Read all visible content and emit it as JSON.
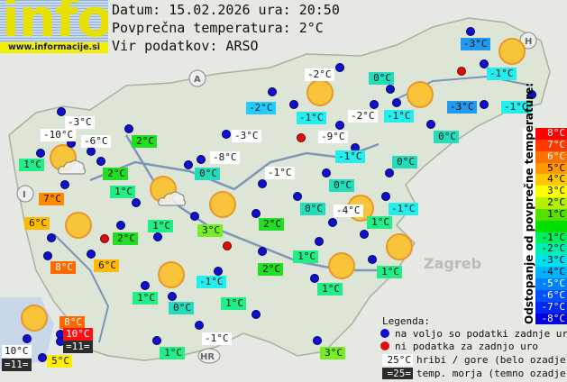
{
  "logo": {
    "text": "info",
    "url": "www.informacije.si"
  },
  "header": {
    "date_line": "Datum: 15.02.2026 ura: 20:50",
    "avg_line": "Povprečna temperatura: 2°C",
    "source_line": "Vir podatkov: ARSO"
  },
  "map_markers": {
    "country_codes": [
      "A",
      "H",
      "I",
      "HR"
    ],
    "city": "Zagreb"
  },
  "labels": [
    {
      "text": "-3°C",
      "type": "mountain"
    },
    {
      "text": "-10°C",
      "type": "mountain"
    },
    {
      "text": "-6°C",
      "type": "mountain"
    },
    {
      "text": "1°C",
      "type": "valley"
    },
    {
      "text": "2°C",
      "type": "valley"
    },
    {
      "text": "2°C",
      "type": "valley"
    },
    {
      "text": "1°C",
      "type": "valley"
    },
    {
      "text": "7°C",
      "type": "valley"
    },
    {
      "text": "6°C",
      "type": "valley"
    },
    {
      "text": "2°C",
      "type": "valley"
    },
    {
      "text": "1°C",
      "type": "valley"
    },
    {
      "text": "8°C",
      "type": "valley"
    },
    {
      "text": "6°C",
      "type": "valley"
    },
    {
      "text": "3°C",
      "type": "valley"
    },
    {
      "text": "-3°C",
      "type": "mountain"
    },
    {
      "text": "-8°C",
      "type": "mountain"
    },
    {
      "text": "0°C",
      "type": "valley"
    },
    {
      "text": "-2°C",
      "type": "valley"
    },
    {
      "text": "-2°C",
      "type": "mountain"
    },
    {
      "text": "0°C",
      "type": "valley"
    },
    {
      "text": "-3°C",
      "type": "valley"
    },
    {
      "text": "-1°C",
      "type": "valley"
    },
    {
      "text": "-1°C",
      "type": "valley"
    },
    {
      "text": "-2°C",
      "type": "mountain"
    },
    {
      "text": "-1°C",
      "type": "valley"
    },
    {
      "text": "-3°C",
      "type": "valley"
    },
    {
      "text": "-1°C",
      "type": "valley"
    },
    {
      "text": "-9°C",
      "type": "mountain"
    },
    {
      "text": "0°C",
      "type": "valley"
    },
    {
      "text": "-1°C",
      "type": "valley"
    },
    {
      "text": "0°C",
      "type": "valley"
    },
    {
      "text": "-1°C",
      "type": "mountain"
    },
    {
      "text": "0°C",
      "type": "valley"
    },
    {
      "text": "0°C",
      "type": "valley"
    },
    {
      "text": "-4°C",
      "type": "mountain"
    },
    {
      "text": "-1°C",
      "type": "valley"
    },
    {
      "text": "1°C",
      "type": "valley"
    },
    {
      "text": "2°C",
      "type": "valley"
    },
    {
      "text": "2°C",
      "type": "valley"
    },
    {
      "text": "1°C",
      "type": "valley"
    },
    {
      "text": "-1°C",
      "type": "valley"
    },
    {
      "text": "1°C",
      "type": "valley"
    },
    {
      "text": "1°C",
      "type": "valley"
    },
    {
      "text": "0°C",
      "type": "valley"
    },
    {
      "text": "1°C",
      "type": "valley"
    },
    {
      "text": "8°C",
      "type": "valley"
    },
    {
      "text": "10°C",
      "type": "valley"
    },
    {
      "text": "=11=",
      "type": "sea"
    },
    {
      "text": "10°C",
      "type": "mountain"
    },
    {
      "text": "=11=",
      "type": "sea"
    },
    {
      "text": "5°C",
      "type": "valley"
    },
    {
      "text": "1°C",
      "type": "valley"
    },
    {
      "text": "-1°C",
      "type": "mountain"
    },
    {
      "text": "3°C",
      "type": "valley"
    },
    {
      "text": "1°C",
      "type": "valley"
    }
  ],
  "temp_colors": {
    "10": "#ff1010",
    "8": "#ff6a00",
    "7": "#ff8a00",
    "6": "#ffbb00",
    "5": "#ffee00",
    "4": "#ffd000",
    "3": "#77ee22",
    "2": "#22dd22",
    "1": "#22ee88",
    "0": "#22ddbb",
    "-1": "#22eeee",
    "-2": "#22ccff",
    "-3": "#2299ee",
    "-4": "#2288ff"
  },
  "scale": {
    "title": "Odstopanje od povprečne temperature:",
    "rows": [
      {
        "label": "8°C",
        "color": "#ff0000",
        "fg": "#fff"
      },
      {
        "label": "7°C",
        "color": "#ff3a00",
        "fg": "#fff"
      },
      {
        "label": "6°C",
        "color": "#ff7000",
        "fg": "#fff"
      },
      {
        "label": "5°C",
        "color": "#ff9a00",
        "fg": "#000"
      },
      {
        "label": "4°C",
        "color": "#ffc800",
        "fg": "#000"
      },
      {
        "label": "3°C",
        "color": "#ffff00",
        "fg": "#000"
      },
      {
        "label": "2°C",
        "color": "#b4f000",
        "fg": "#000"
      },
      {
        "label": "1°C",
        "color": "#55e000",
        "fg": "#000"
      },
      {
        "label": "",
        "color": "#00e000",
        "fg": "#000"
      },
      {
        "label": "-1°C",
        "color": "#00ee60",
        "fg": "#000"
      },
      {
        "label": "-2°C",
        "color": "#00eeb0",
        "fg": "#000"
      },
      {
        "label": "-3°C",
        "color": "#00e0f0",
        "fg": "#000"
      },
      {
        "label": "-4°C",
        "color": "#00b4ff",
        "fg": "#000"
      },
      {
        "label": "-5°C",
        "color": "#0080ff",
        "fg": "#fff"
      },
      {
        "label": "-6°C",
        "color": "#0050ff",
        "fg": "#fff"
      },
      {
        "label": "-7°C",
        "color": "#0028f0",
        "fg": "#fff"
      },
      {
        "label": "-8°C",
        "color": "#0000e0",
        "fg": "#fff"
      }
    ]
  },
  "legend": {
    "title": "Legenda:",
    "blue_dot": "na voljo so podatki zadnje ure",
    "red_dot": "ni podatka za zadnjo uro",
    "mountain_sample": "25°C",
    "mountain_text": "hribi / gore (belo ozadje)",
    "sea_sample": "=25=",
    "sea_text": "temp. morja (temno ozadje)"
  }
}
